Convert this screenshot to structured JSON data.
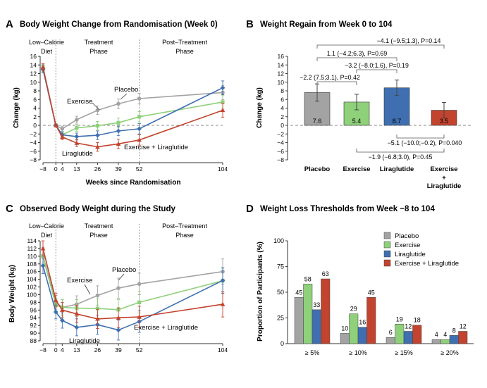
{
  "colors": {
    "placebo": "#a3a3a3",
    "exercise": "#8fd07a",
    "liraglutide": "#3f6fb0",
    "combo": "#c2432e",
    "axis": "#333333",
    "dashed": "#888888"
  },
  "chart_data": [
    {
      "id": "A",
      "type": "line",
      "panel_letter": "A",
      "title": "Body Weight Change from Randomisation (Week 0)",
      "xlabel": "Weeks since Randomisation",
      "ylabel": "Change (kg)",
      "x": [
        -8,
        0,
        4,
        13,
        26,
        39,
        52,
        104
      ],
      "xticks": [
        "−8",
        "0",
        "4",
        "13",
        "26",
        "39",
        "52",
        "104"
      ],
      "ylim": [
        -8,
        16
      ],
      "yticks": [
        -8,
        -6,
        -4,
        -2,
        0,
        2,
        4,
        6,
        8,
        10,
        12,
        14,
        16
      ],
      "phases": [
        "Low–Calorie Diet",
        "Treatment Phase",
        "Post–Treatment Phase"
      ],
      "series": [
        {
          "name": "Placebo",
          "key": "placebo",
          "values": [
            13.3,
            0,
            -0.8,
            1.3,
            3.5,
            5.0,
            6.2,
            7.6
          ],
          "err": [
            0.8,
            0.3,
            0.6,
            0.8,
            1.0,
            1.1,
            1.2,
            1.6
          ]
        },
        {
          "name": "Exercise",
          "key": "exercise",
          "values": [
            13.2,
            0,
            -2.2,
            -0.6,
            -0.1,
            0.6,
            2.0,
            5.4
          ],
          "err": [
            0.8,
            0.3,
            0.6,
            0.8,
            1.0,
            1.1,
            1.2,
            1.6
          ]
        },
        {
          "name": "Liraglutide",
          "key": "liraglutide",
          "values": [
            13.0,
            0,
            -2.2,
            -2.6,
            -2.3,
            -1.3,
            -0.8,
            8.7
          ],
          "err": [
            0.8,
            0.3,
            0.6,
            0.8,
            1.0,
            1.1,
            1.2,
            1.6
          ]
        },
        {
          "name": "Exercise + Liraglutide",
          "key": "combo",
          "values": [
            13.5,
            0,
            -2.7,
            -4.1,
            -5.0,
            -4.3,
            -3.4,
            3.5
          ],
          "err": [
            0.8,
            0.3,
            0.6,
            0.8,
            1.0,
            1.1,
            1.2,
            1.6
          ]
        }
      ],
      "series_labels": [
        "Placebo",
        "Exercise",
        "Liraglutide",
        "Exercise + Liraglutide"
      ]
    },
    {
      "id": "B",
      "type": "bar",
      "panel_letter": "B",
      "title": "Weight Regain from Week 0 to 104",
      "ylabel": "Change (kg)",
      "ylim": [
        -8,
        16
      ],
      "yticks": [
        -8,
        -6,
        -4,
        -2,
        0,
        2,
        4,
        6,
        8,
        10,
        12,
        14,
        16
      ],
      "categories": [
        "Placebo",
        "Exercise",
        "Liraglutide",
        "Exercise + Liraglutide"
      ],
      "category_lines": [
        [
          "Placebo"
        ],
        [
          "Exercise"
        ],
        [
          "Liraglutide"
        ],
        [
          "Exercise",
          "+",
          "Liraglutide"
        ]
      ],
      "keys": [
        "placebo",
        "exercise",
        "liraglutide",
        "combo"
      ],
      "values": [
        7.6,
        5.4,
        8.7,
        3.5
      ],
      "value_labels": [
        "7.6",
        "5.4",
        "8.7",
        "3.5"
      ],
      "err": [
        2.0,
        1.8,
        1.8,
        1.8
      ],
      "comparisons": [
        {
          "from": 0,
          "to": 3,
          "label": "−4.1 (−9.5;1.3), P=0.14"
        },
        {
          "from": 0,
          "to": 2,
          "label": "1.1 (−4.2;6.3), P=0.69"
        },
        {
          "from": 1,
          "to": 2,
          "label": "−3.2 (−8.0;1.6), P=0.19"
        },
        {
          "from": 0,
          "to": 1,
          "label": "−2.2 (7.5;3.1), P=0.42"
        },
        {
          "from": 2,
          "to": 3,
          "label": "−5.1 (−10.0;−0.2), P=0.040"
        },
        {
          "from": 1,
          "to": 3,
          "label": "−1.9 (−6.8;3.0), P=0.45"
        }
      ]
    },
    {
      "id": "C",
      "type": "line",
      "panel_letter": "C",
      "title": "Observed Body Weight during the Study",
      "xlabel": "",
      "ylabel": "Body Weight (kg)",
      "x": [
        -8,
        0,
        4,
        13,
        26,
        39,
        52,
        104
      ],
      "xticks": [
        "−8",
        "0",
        "4",
        "13",
        "26",
        "39",
        "52",
        "104"
      ],
      "ylim": [
        88,
        114
      ],
      "yticks": [
        88,
        90,
        92,
        94,
        96,
        98,
        100,
        102,
        104,
        106,
        108,
        110,
        112,
        114
      ],
      "phases": [
        "Low–Calorie Diet",
        "Treatment Phase",
        "Post–Treatment Phase"
      ],
      "series": [
        {
          "name": "Placebo",
          "key": "placebo",
          "values": [
            110.2,
            98.0,
            96.7,
            97.5,
            99.8,
            101.7,
            102.8,
            106.0
          ],
          "err": [
            2.0,
            1.8,
            2.0,
            2.2,
            2.5,
            2.6,
            2.8,
            3.3
          ]
        },
        {
          "name": "Exercise",
          "key": "exercise",
          "values": [
            109.9,
            97.3,
            96.7,
            96.5,
            96.4,
            96.1,
            98.0,
            103.6
          ],
          "err": [
            2.0,
            1.8,
            2.0,
            2.2,
            2.5,
            2.6,
            2.8,
            3.3
          ]
        },
        {
          "name": "Liraglutide",
          "key": "liraglutide",
          "values": [
            107.5,
            95.5,
            93.3,
            91.5,
            92.2,
            90.8,
            93.0,
            103.7
          ],
          "err": [
            2.0,
            1.8,
            2.0,
            2.2,
            2.5,
            2.6,
            2.8,
            3.3
          ]
        },
        {
          "name": "Exercise + Liraglutide",
          "key": "combo",
          "values": [
            112.0,
            98.6,
            96.0,
            95.0,
            93.7,
            94.0,
            94.2,
            97.5
          ],
          "err": [
            2.0,
            1.8,
            2.0,
            2.2,
            2.5,
            2.6,
            2.8,
            3.3
          ]
        }
      ],
      "series_labels": [
        "Placebo",
        "Exercise",
        "Liraglutide",
        "Exercise + Liraglutide"
      ]
    },
    {
      "id": "D",
      "type": "bar",
      "panel_letter": "D",
      "title": "Weight Loss Thresholds from Week −8 to 104",
      "ylabel": "Proportion of Participants (%)",
      "ylim": [
        0,
        100
      ],
      "yticks": [
        0,
        25,
        50,
        75,
        100
      ],
      "categories": [
        "≥ 5%",
        "≥ 10%",
        "≥ 15%",
        "≥ 20%"
      ],
      "series": [
        {
          "name": "Placebo",
          "key": "placebo",
          "values": [
            45,
            10,
            6,
            4
          ]
        },
        {
          "name": "Exercise",
          "key": "exercise",
          "values": [
            58,
            29,
            19,
            4
          ]
        },
        {
          "name": "Liraglutide",
          "key": "liraglutide",
          "values": [
            33,
            16,
            12,
            8
          ]
        },
        {
          "name": "Exercise + Liraglutide",
          "key": "combo",
          "values": [
            63,
            45,
            18,
            12
          ]
        }
      ],
      "legend": "top-right"
    }
  ]
}
